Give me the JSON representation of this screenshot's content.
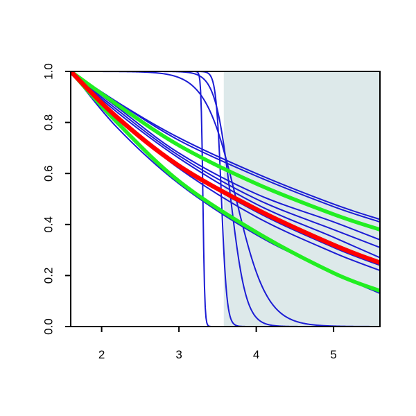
{
  "chart_data": {
    "type": "line",
    "title": "",
    "xlabel": "",
    "ylabel": "",
    "xlim": [
      1.6,
      5.6
    ],
    "ylim": [
      0.0,
      1.0
    ],
    "grid": false,
    "legend": "none",
    "x_ticks": [
      "2",
      "3",
      "4",
      "5"
    ],
    "y_ticks": [
      "0.0",
      "0.2",
      "0.4",
      "0.6",
      "0.8",
      "1.0"
    ],
    "shaded_region": {
      "x_from": 3.58,
      "x_to": 5.6,
      "color": "#dde9ea"
    },
    "colors": {
      "blue": "#1c1cd4",
      "red": "#ff0000",
      "green": "#22ee22",
      "axis": "#000000"
    },
    "series": [
      {
        "color": "blue",
        "width": 2,
        "kind": "step",
        "params": {
          "c": 3.31,
          "s": 0.012
        }
      },
      {
        "color": "blue",
        "width": 2,
        "kind": "step",
        "params": {
          "c": 3.55,
          "s": 0.035
        }
      },
      {
        "color": "blue",
        "width": 2,
        "kind": "step",
        "params": {
          "c": 3.67,
          "s": 0.1
        }
      },
      {
        "color": "blue",
        "width": 2,
        "kind": "step",
        "params": {
          "c": 3.74,
          "s": 0.2
        }
      },
      {
        "color": "blue",
        "width": 2,
        "kind": "decay",
        "points": [
          [
            1.6,
            1.0
          ],
          [
            2.2,
            0.84
          ],
          [
            3.0,
            0.66
          ],
          [
            4.0,
            0.48
          ],
          [
            5.0,
            0.35
          ],
          [
            5.6,
            0.27
          ]
        ]
      },
      {
        "color": "blue",
        "width": 2,
        "kind": "decay",
        "points": [
          [
            1.6,
            1.0
          ],
          [
            2.2,
            0.85
          ],
          [
            3.0,
            0.67
          ],
          [
            4.0,
            0.5
          ],
          [
            5.0,
            0.38
          ],
          [
            5.6,
            0.31
          ]
        ]
      },
      {
        "color": "blue",
        "width": 2,
        "kind": "decay",
        "points": [
          [
            1.6,
            1.0
          ],
          [
            2.2,
            0.86
          ],
          [
            3.0,
            0.68
          ],
          [
            4.0,
            0.52
          ],
          [
            5.0,
            0.41
          ],
          [
            5.6,
            0.34
          ]
        ]
      },
      {
        "color": "blue",
        "width": 2,
        "kind": "decay",
        "points": [
          [
            1.6,
            1.0
          ],
          [
            2.2,
            0.88
          ],
          [
            3.0,
            0.74
          ],
          [
            4.0,
            0.6
          ],
          [
            5.0,
            0.48
          ],
          [
            5.6,
            0.42
          ]
        ]
      },
      {
        "color": "blue",
        "width": 2,
        "kind": "decay",
        "points": [
          [
            1.6,
            1.0
          ],
          [
            2.2,
            0.88
          ],
          [
            3.0,
            0.73
          ],
          [
            4.0,
            0.59
          ],
          [
            5.0,
            0.47
          ],
          [
            5.6,
            0.41
          ]
        ]
      },
      {
        "color": "blue",
        "width": 2,
        "kind": "decay",
        "points": [
          [
            1.6,
            1.0
          ],
          [
            2.2,
            0.82
          ],
          [
            3.0,
            0.63
          ],
          [
            4.0,
            0.45
          ],
          [
            5.0,
            0.31
          ],
          [
            5.6,
            0.24
          ]
        ]
      },
      {
        "color": "blue",
        "width": 2,
        "kind": "decay",
        "points": [
          [
            1.6,
            1.0
          ],
          [
            2.2,
            0.82
          ],
          [
            3.0,
            0.62
          ],
          [
            4.0,
            0.43
          ],
          [
            5.0,
            0.29
          ],
          [
            5.6,
            0.22
          ]
        ]
      },
      {
        "color": "blue",
        "width": 2,
        "kind": "decay",
        "points": [
          [
            1.6,
            1.0
          ],
          [
            2.2,
            0.78
          ],
          [
            3.0,
            0.56
          ],
          [
            4.0,
            0.36
          ],
          [
            5.0,
            0.21
          ],
          [
            5.6,
            0.13
          ]
        ]
      },
      {
        "color": "green",
        "width": 5.5,
        "kind": "decay",
        "points": [
          [
            1.6,
            1.0
          ],
          [
            2.2,
            0.87
          ],
          [
            3.0,
            0.71
          ],
          [
            4.0,
            0.56
          ],
          [
            5.0,
            0.44
          ],
          [
            5.6,
            0.38
          ]
        ]
      },
      {
        "color": "green",
        "width": 5.5,
        "kind": "decay",
        "points": [
          [
            1.6,
            1.0
          ],
          [
            2.2,
            0.8
          ],
          [
            3.0,
            0.57
          ],
          [
            4.0,
            0.37
          ],
          [
            5.0,
            0.21
          ],
          [
            5.6,
            0.14
          ]
        ]
      },
      {
        "color": "red",
        "width": 6.5,
        "kind": "decay",
        "points": [
          [
            1.6,
            1.0
          ],
          [
            2.2,
            0.82
          ],
          [
            3.0,
            0.63
          ],
          [
            4.0,
            0.46
          ],
          [
            5.0,
            0.32
          ],
          [
            5.6,
            0.25
          ]
        ]
      }
    ]
  }
}
